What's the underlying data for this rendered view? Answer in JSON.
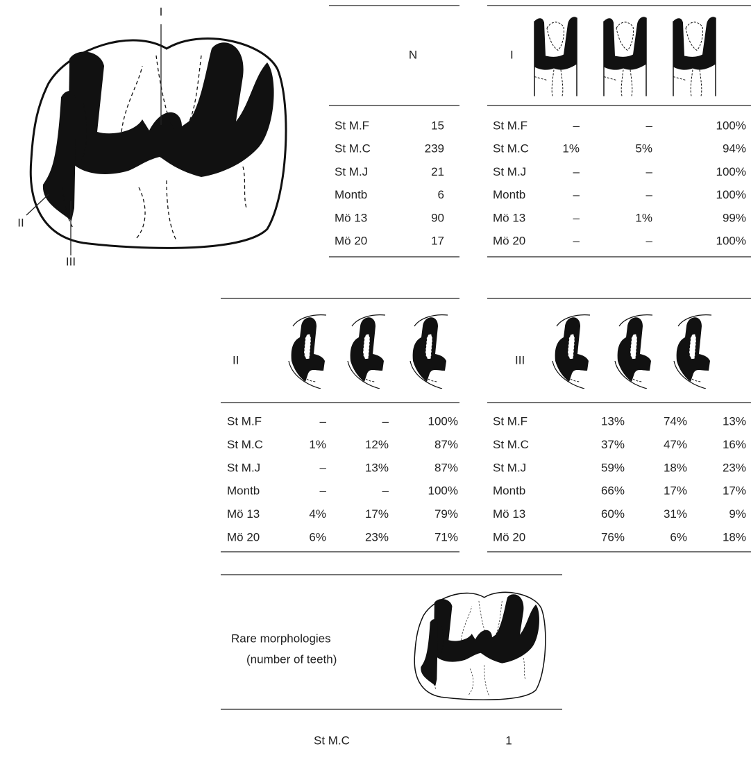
{
  "drawing": {
    "labels": [
      "I",
      "II",
      "III"
    ]
  },
  "table_n": {
    "header": "N",
    "rows": [
      [
        "St M.F",
        "15"
      ],
      [
        "St M.C",
        "239"
      ],
      [
        "St M.J",
        "21"
      ],
      [
        "Montb",
        "6"
      ],
      [
        "Mö 13",
        "90"
      ],
      [
        "Mö 20",
        "17"
      ]
    ]
  },
  "table_1": {
    "header": "I",
    "rows": [
      [
        "St M.F",
        "–",
        "–",
        "100%"
      ],
      [
        "St M.C",
        "1%",
        "5%",
        "94%"
      ],
      [
        "St M.J",
        "–",
        "–",
        "100%"
      ],
      [
        "Montb",
        "–",
        "–",
        "100%"
      ],
      [
        "Mö 13",
        "–",
        "1%",
        "99%"
      ],
      [
        "Mö 20",
        "–",
        "–",
        "100%"
      ]
    ]
  },
  "table_2": {
    "header": "II",
    "rows": [
      [
        "St M.F",
        "–",
        "–",
        "100%"
      ],
      [
        "St M.C",
        "1%",
        "12%",
        "87%"
      ],
      [
        "St M.J",
        "–",
        "13%",
        "87%"
      ],
      [
        "Montb",
        "–",
        "–",
        "100%"
      ],
      [
        "Mö 13",
        "4%",
        "17%",
        "79%"
      ],
      [
        "Mö 20",
        "6%",
        "23%",
        "71%"
      ]
    ]
  },
  "table_3": {
    "header": "III",
    "rows": [
      [
        "St M.F",
        "13%",
        "74%",
        "13%"
      ],
      [
        "St M.C",
        "37%",
        "47%",
        "16%"
      ],
      [
        "St M.J",
        "59%",
        "18%",
        "23%"
      ],
      [
        "Montb",
        "66%",
        "17%",
        "17%"
      ],
      [
        "Mö 13",
        "60%",
        "31%",
        "9%"
      ],
      [
        "Mö 20",
        "76%",
        "6%",
        "18%"
      ]
    ]
  },
  "rare": {
    "label_line1": "Rare morphologies",
    "label_line2": "(number of teeth)",
    "rows": [
      [
        "St M.C",
        "1"
      ]
    ]
  }
}
